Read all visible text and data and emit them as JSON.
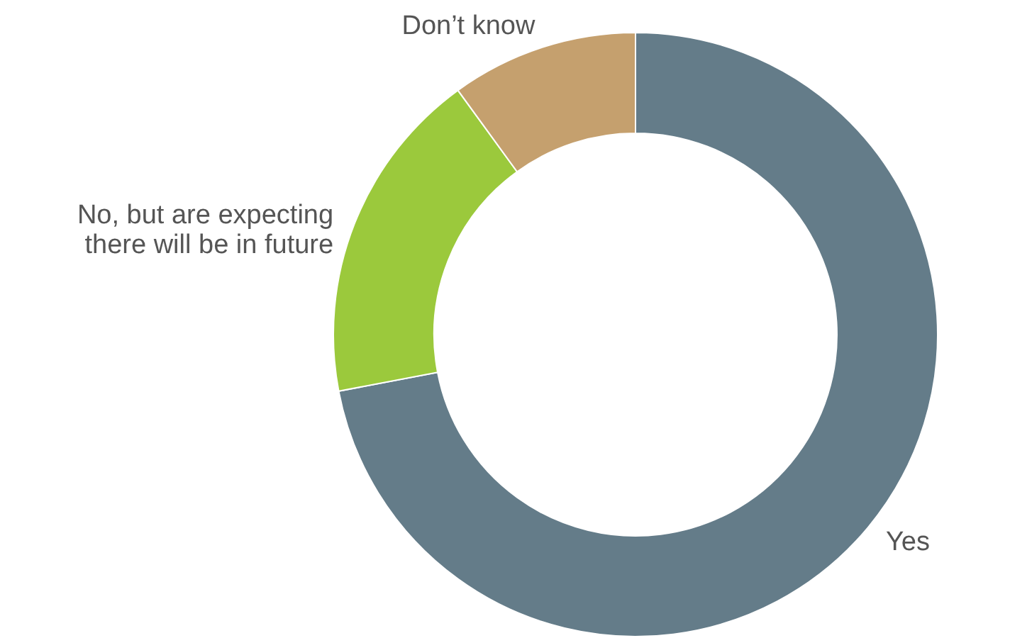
{
  "chart_data": {
    "type": "donut",
    "categories": [
      "Yes",
      "No, but are expecting\nthere will be in future",
      "Don’t know"
    ],
    "values": [
      72,
      18,
      10
    ],
    "colors": [
      "#647c89",
      "#9bc93c",
      "#c5a06e"
    ]
  }
}
